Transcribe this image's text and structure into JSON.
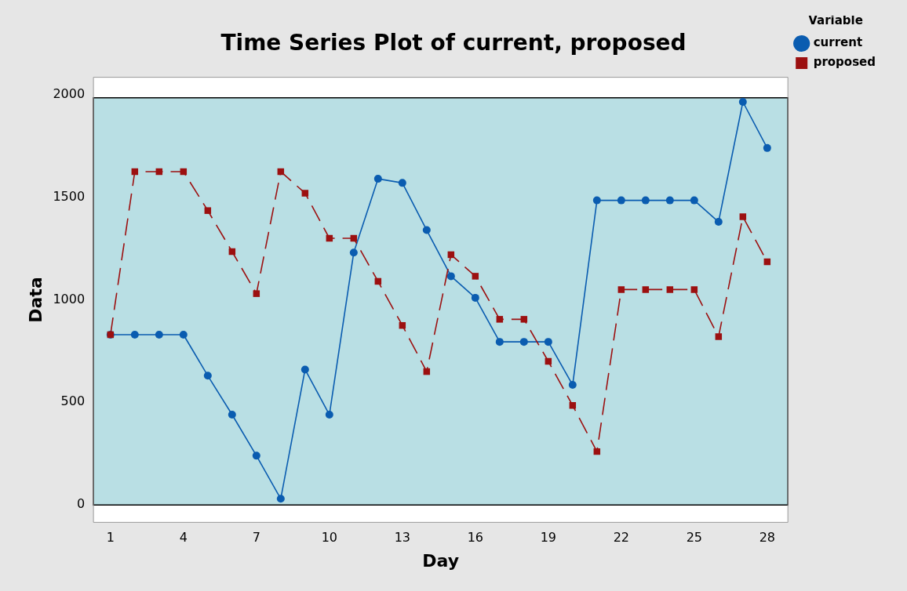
{
  "chart_data": {
    "type": "line",
    "title": "Time Series Plot of current, proposed",
    "xlabel": "Day",
    "ylabel": "Data",
    "legend_title": "Variable",
    "x": [
      1,
      2,
      3,
      4,
      5,
      6,
      7,
      8,
      9,
      10,
      11,
      12,
      13,
      14,
      15,
      16,
      17,
      18,
      19,
      20,
      21,
      22,
      23,
      24,
      25,
      26,
      27,
      28
    ],
    "series": [
      {
        "name": "current",
        "color": "#0a5cb0",
        "marker": "circle",
        "line_style": "solid",
        "values": [
          830,
          830,
          830,
          830,
          630,
          440,
          240,
          30,
          660,
          440,
          1230,
          1590,
          1570,
          1340,
          1115,
          1010,
          795,
          795,
          795,
          585,
          1485,
          1485,
          1485,
          1485,
          1485,
          1380,
          1965,
          1740
        ]
      },
      {
        "name": "proposed",
        "color": "#9c1010",
        "marker": "square",
        "line_style": "dashed",
        "values": [
          830,
          1625,
          1625,
          1625,
          1435,
          1235,
          1030,
          1625,
          1520,
          1300,
          1300,
          1090,
          875,
          650,
          1220,
          1115,
          905,
          905,
          700,
          485,
          260,
          1050,
          1050,
          1050,
          1050,
          820,
          1405,
          1185
        ]
      }
    ],
    "xlim": [
      0.3,
      28.85
    ],
    "xticks": [
      1,
      4,
      7,
      10,
      13,
      16,
      19,
      22,
      25,
      28
    ],
    "ylim": [
      -85,
      2085
    ],
    "yticks": [
      0,
      500,
      1000,
      1500,
      2000
    ],
    "bands": [
      {
        "axis": "y",
        "from": 0,
        "to": 1985,
        "color": "#b9dfe4"
      }
    ],
    "grid": false,
    "legend": "top right"
  }
}
